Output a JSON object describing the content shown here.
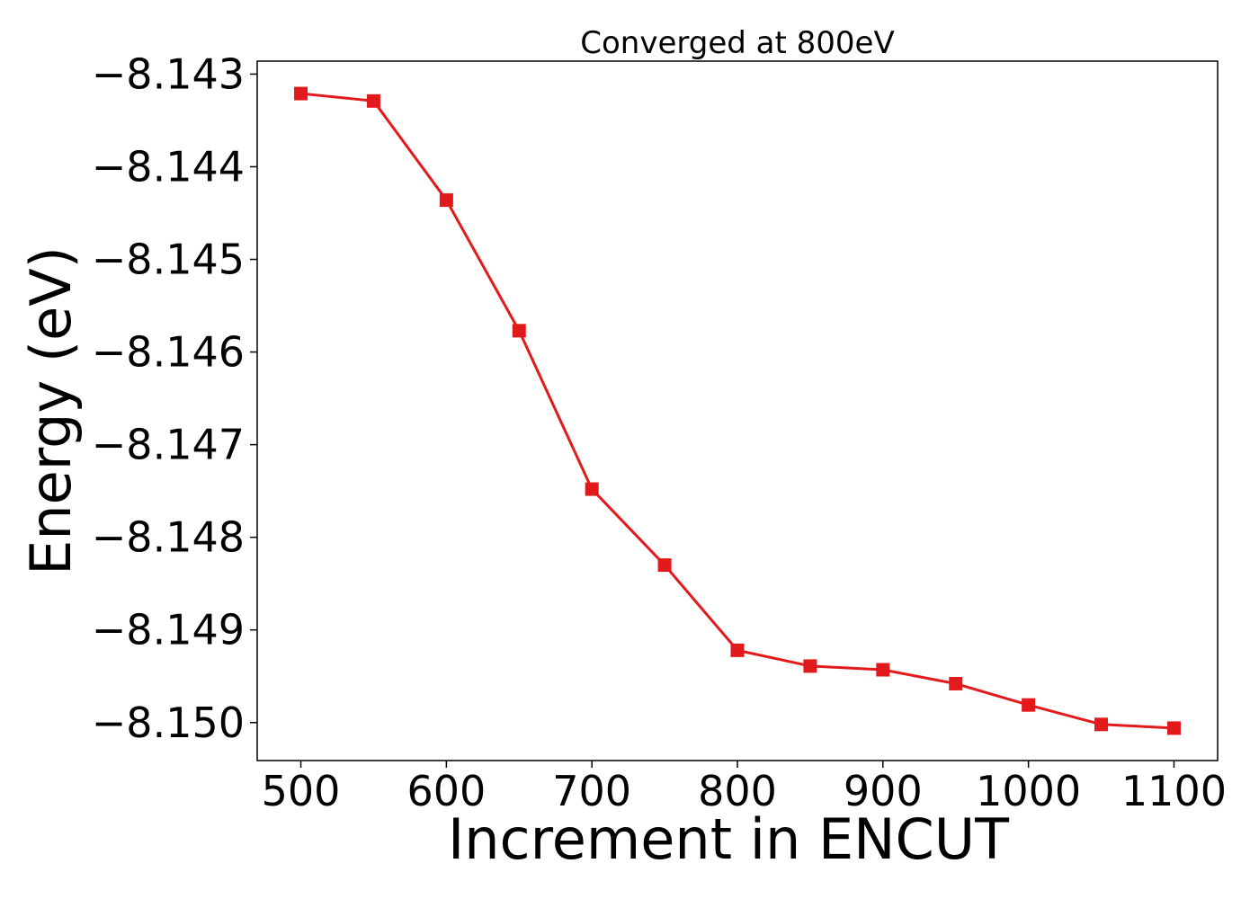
{
  "chart_data": {
    "type": "line",
    "title": "Converged at 800eV",
    "xlabel": "Increment in ENCUT",
    "ylabel": "Energy (eV)",
    "x": [
      500,
      550,
      600,
      650,
      700,
      750,
      800,
      850,
      900,
      950,
      1000,
      1050,
      1100
    ],
    "series": [
      {
        "values": [
          -8.14321,
          -8.14329,
          -8.14436,
          -8.14577,
          -8.14748,
          -8.1483,
          -8.14922,
          -8.14939,
          -8.14943,
          -8.14958,
          -8.14981,
          -8.15002,
          -8.15006
        ],
        "color": "#e31a1c",
        "marker": "square"
      }
    ],
    "xlim": [
      470,
      1130
    ],
    "ylim": [
      -8.15041,
      -8.14286
    ],
    "xticks": [
      500,
      600,
      700,
      800,
      900,
      1000,
      1100
    ],
    "xtick_labels": [
      "500",
      "600",
      "700",
      "800",
      "900",
      "1000",
      "1100"
    ],
    "yticks": [
      -8.143,
      -8.144,
      -8.145,
      -8.146,
      -8.147,
      -8.148,
      -8.149,
      -8.15
    ],
    "ytick_labels": [
      "−8.143",
      "−8.144",
      "−8.145",
      "−8.146",
      "−8.147",
      "−8.148",
      "−8.149",
      "−8.150"
    ],
    "grid": false,
    "legend": "none"
  }
}
